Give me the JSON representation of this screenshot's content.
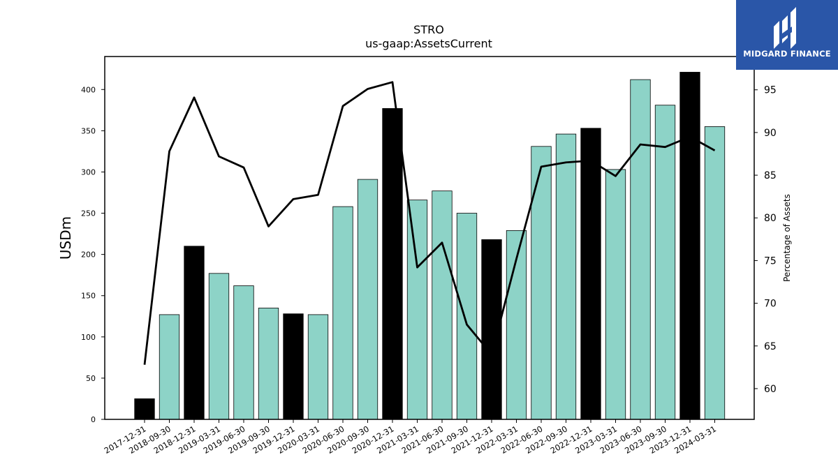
{
  "chart_data": {
    "type": "bar",
    "title": "STRO",
    "subtitle": "us-gaap:AssetsCurrent",
    "ylabel": "USDm",
    "y2label": "Percentage of Assets",
    "ylim": [
      0,
      440
    ],
    "y2lim": [
      56.4,
      98.9
    ],
    "yticks": [
      0,
      50,
      100,
      150,
      200,
      250,
      300,
      350,
      400
    ],
    "y2ticks": [
      60,
      65,
      70,
      75,
      80,
      85,
      90,
      95
    ],
    "grid": false,
    "categories": [
      "2017-12-31",
      "2018-09-30",
      "2018-12-31",
      "2019-03-31",
      "2019-06-30",
      "2019-09-30",
      "2019-12-31",
      "2020-03-31",
      "2020-06-30",
      "2020-09-30",
      "2020-12-31",
      "2021-03-31",
      "2021-06-30",
      "2021-09-30",
      "2021-12-31",
      "2022-03-31",
      "2022-06-30",
      "2022-09-30",
      "2022-12-31",
      "2023-03-31",
      "2023-06-30",
      "2023-09-30",
      "2023-12-31",
      "2024-03-31"
    ],
    "series": [
      {
        "type": "bar",
        "values": [
          25,
          127,
          210,
          177,
          162,
          135,
          128,
          127,
          258,
          291,
          377,
          266,
          277,
          250,
          218,
          229,
          331,
          346,
          353,
          303,
          412,
          381,
          421,
          355
        ],
        "highlight": [
          true,
          false,
          true,
          false,
          false,
          false,
          true,
          false,
          false,
          false,
          true,
          false,
          false,
          false,
          true,
          false,
          false,
          false,
          true,
          false,
          false,
          false,
          true,
          false
        ],
        "highlight_color": "#000000",
        "color": "#8dd3c7"
      },
      {
        "type": "line",
        "axis": "right",
        "values": [
          62.8,
          87.8,
          94.1,
          87.2,
          85.9,
          79.0,
          82.2,
          82.7,
          93.1,
          95.1,
          95.9,
          74.2,
          77.1,
          67.5,
          64.0,
          75.2,
          86.0,
          86.5,
          86.7,
          84.9,
          88.6,
          88.3,
          89.5,
          87.9
        ],
        "color": "#000000"
      }
    ]
  },
  "logo": {
    "text": "MIDGARD FINANCE",
    "background": "#2a56a8"
  }
}
